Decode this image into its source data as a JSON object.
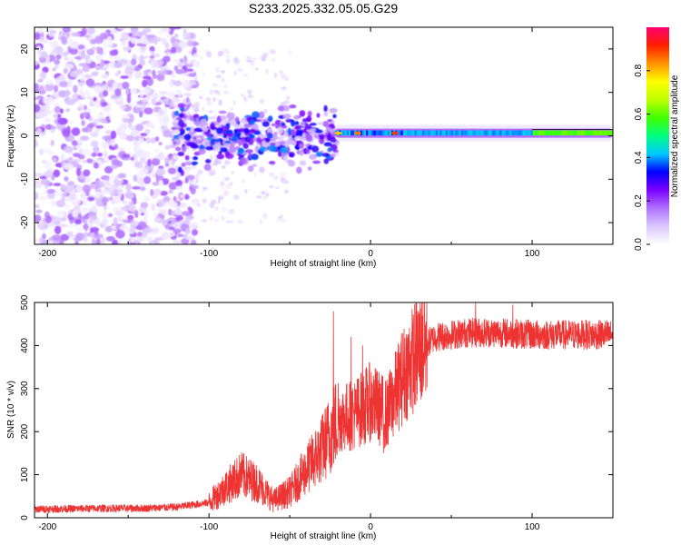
{
  "title": "S233.2025.332.05.05.G29",
  "chart_data": [
    {
      "type": "heatmap",
      "title": "",
      "xlabel": "Height of straight line (km)",
      "ylabel": "Frequency (Hz)",
      "xlim": [
        -208,
        150
      ],
      "ylim": [
        -25,
        25
      ],
      "x_ticks": [
        -200,
        -100,
        0,
        100
      ],
      "y_ticks": [
        -20,
        -10,
        0,
        10,
        20
      ],
      "colorbar": {
        "label": "Normalized spectral amplitude",
        "range": [
          0.0,
          1.0
        ],
        "ticks": [
          0.0,
          0.2,
          0.4,
          0.6,
          0.8
        ],
        "tick_labels": [
          "0.0",
          "0.2",
          "0.4",
          "0.6",
          "0.8"
        ],
        "colors": [
          "#ffffff",
          "#dcc8ff",
          "#b070ff",
          "#7a00ff",
          "#0000ff",
          "#00c8ff",
          "#00ff80",
          "#40ff00",
          "#c0ff00",
          "#ffff00",
          "#ff9000",
          "#ff2000",
          "#ff0070"
        ]
      },
      "description_regions": [
        {
          "name": "scattered noise",
          "x": [
            -208,
            -100
          ],
          "f": [
            -25,
            25
          ],
          "amplitude": [
            0.0,
            0.2
          ]
        },
        {
          "name": "transition",
          "x": [
            -120,
            -20
          ],
          "f": [
            -10,
            7
          ],
          "amplitude": [
            0.1,
            0.4
          ]
        },
        {
          "name": "coherent line",
          "x": [
            -20,
            150
          ],
          "f": [
            0,
            1.5
          ],
          "amplitude": [
            0.4,
            0.9
          ]
        }
      ]
    },
    {
      "type": "line",
      "title": "",
      "xlabel": "Height of straight line (km)",
      "ylabel": "SNR (10 * v/v)",
      "xlim": [
        -208,
        150
      ],
      "ylim": [
        0,
        500
      ],
      "x_ticks": [
        -200,
        -100,
        0,
        100
      ],
      "y_ticks": [
        0,
        100,
        200,
        300,
        400,
        500
      ],
      "color": "#ee3333",
      "envelope_x": [
        -208,
        -160,
        -140,
        -120,
        -100,
        -90,
        -80,
        -70,
        -60,
        -50,
        -40,
        -30,
        -20,
        -10,
        0,
        10,
        20,
        30,
        40,
        60,
        80,
        100,
        120,
        150
      ],
      "envelope_y": [
        20,
        22,
        22,
        25,
        35,
        70,
        100,
        80,
        40,
        60,
        110,
        160,
        230,
        240,
        270,
        240,
        330,
        390,
        420,
        430,
        430,
        425,
        425,
        425
      ],
      "spikes": [
        [
          -23,
          480
        ],
        [
          -12,
          420
        ],
        [
          -5,
          400
        ],
        [
          8,
          150
        ],
        [
          65,
          500
        ],
        [
          88,
          495
        ]
      ]
    }
  ]
}
